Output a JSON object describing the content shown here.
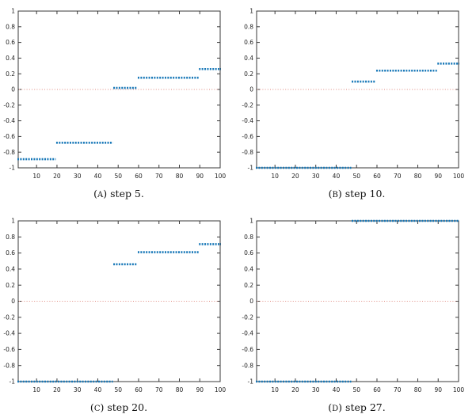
{
  "figure": {
    "background": "#ffffff",
    "colors": {
      "marker": "#1878b8",
      "zero_line": "#e08a80",
      "axis": "#3a3a3a",
      "tick_label": "#222222"
    },
    "axes": {
      "xlim": [
        1,
        100
      ],
      "ylim": [
        -1,
        1
      ],
      "xticks": [
        10,
        20,
        30,
        40,
        50,
        60,
        70,
        80,
        90,
        100
      ],
      "xtick_labels": [
        "10",
        "20",
        "30",
        "40",
        "50",
        "60",
        "70",
        "80",
        "90",
        "100"
      ],
      "yticks": [
        -1,
        -0.8,
        -0.6,
        -0.4,
        -0.2,
        0,
        0.2,
        0.4,
        0.6,
        0.8,
        1
      ],
      "ytick_labels": [
        "-1",
        "-0.8",
        "-0.6",
        "-0.4",
        "-0.2",
        "0",
        "0.2",
        "0.4",
        "0.6",
        "0.8",
        "1"
      ],
      "grid": false,
      "box": true,
      "tick_style": "in, mirrored on all sides"
    }
  },
  "chart_data": [
    {
      "type": "scatter",
      "note": "markers at every integer x forming horizontal step segments",
      "caption": {
        "open": "(",
        "letter": "A",
        "close": ")",
        "text": "step 5."
      },
      "zero_line_y": 0,
      "segments": [
        {
          "x_start": 1,
          "x_end": 19,
          "y": -0.89
        },
        {
          "x_start": 20,
          "x_end": 47,
          "y": -0.68
        },
        {
          "x_start": 48,
          "x_end": 59,
          "y": 0.02
        },
        {
          "x_start": 60,
          "x_end": 89,
          "y": 0.15
        },
        {
          "x_start": 90,
          "x_end": 100,
          "y": 0.26
        }
      ]
    },
    {
      "type": "scatter",
      "note": "markers at every integer x forming horizontal step segments",
      "caption": {
        "open": "(",
        "letter": "B",
        "close": ")",
        "text": "step 10."
      },
      "zero_line_y": 0,
      "segments": [
        {
          "x_start": 1,
          "x_end": 47,
          "y": -1
        },
        {
          "x_start": 48,
          "x_end": 59,
          "y": 0.1
        },
        {
          "x_start": 60,
          "x_end": 89,
          "y": 0.24
        },
        {
          "x_start": 90,
          "x_end": 100,
          "y": 0.33
        }
      ]
    },
    {
      "type": "scatter",
      "note": "markers at every integer x forming horizontal step segments",
      "caption": {
        "open": "(",
        "letter": "C",
        "close": ")",
        "text": "step 20."
      },
      "zero_line_y": 0,
      "segments": [
        {
          "x_start": 1,
          "x_end": 47,
          "y": -1
        },
        {
          "x_start": 48,
          "x_end": 59,
          "y": 0.46
        },
        {
          "x_start": 60,
          "x_end": 89,
          "y": 0.61
        },
        {
          "x_start": 90,
          "x_end": 100,
          "y": 0.71
        }
      ]
    },
    {
      "type": "scatter",
      "note": "markers at every integer x forming horizontal step segments",
      "caption": {
        "open": "(",
        "letter": "D",
        "close": ")",
        "text": "step 27."
      },
      "zero_line_y": 0,
      "segments": [
        {
          "x_start": 1,
          "x_end": 47,
          "y": -1
        },
        {
          "x_start": 48,
          "x_end": 100,
          "y": 1
        }
      ]
    }
  ]
}
